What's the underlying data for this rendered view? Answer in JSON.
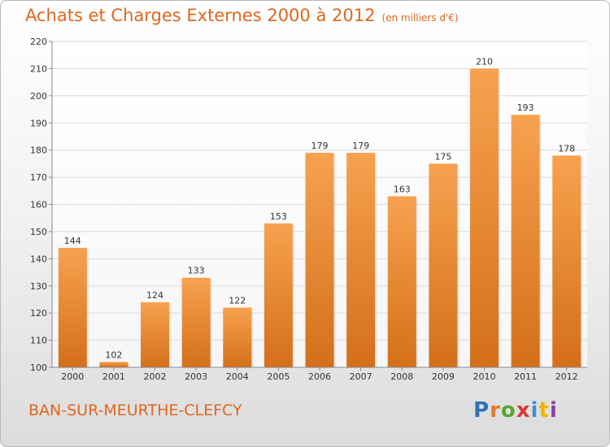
{
  "header": {
    "title": "Achats et Charges Externes 2000 à 2012",
    "unit": "(en milliers d'€)"
  },
  "footer": {
    "commune": "BAN-SUR-MEURTHE-CLEFCY"
  },
  "logo": {
    "text": "Proxiti",
    "letters": [
      "P",
      "r",
      "o",
      "x",
      "i",
      "t",
      "i"
    ],
    "colors": [
      "#2f73b8",
      "#e8762a",
      "#5aa533",
      "#d63a3a",
      "#3f8fd2",
      "#f0b400",
      "#8a3fa0"
    ]
  },
  "chart_data": {
    "type": "bar",
    "title": "Achats et Charges Externes 2000 à 2012",
    "categories": [
      "2000",
      "2001",
      "2002",
      "2003",
      "2004",
      "2005",
      "2006",
      "2007",
      "2008",
      "2009",
      "2010",
      "2011",
      "2012"
    ],
    "values": [
      144,
      102,
      124,
      133,
      122,
      153,
      179,
      179,
      163,
      175,
      210,
      193,
      178
    ],
    "ylim": [
      100,
      220
    ],
    "yticks": [
      100,
      110,
      120,
      130,
      140,
      150,
      160,
      170,
      180,
      190,
      200,
      210,
      220
    ],
    "grid": true,
    "bar_color_top": "#f7a24f",
    "bar_color_bottom": "#d46f1a"
  }
}
